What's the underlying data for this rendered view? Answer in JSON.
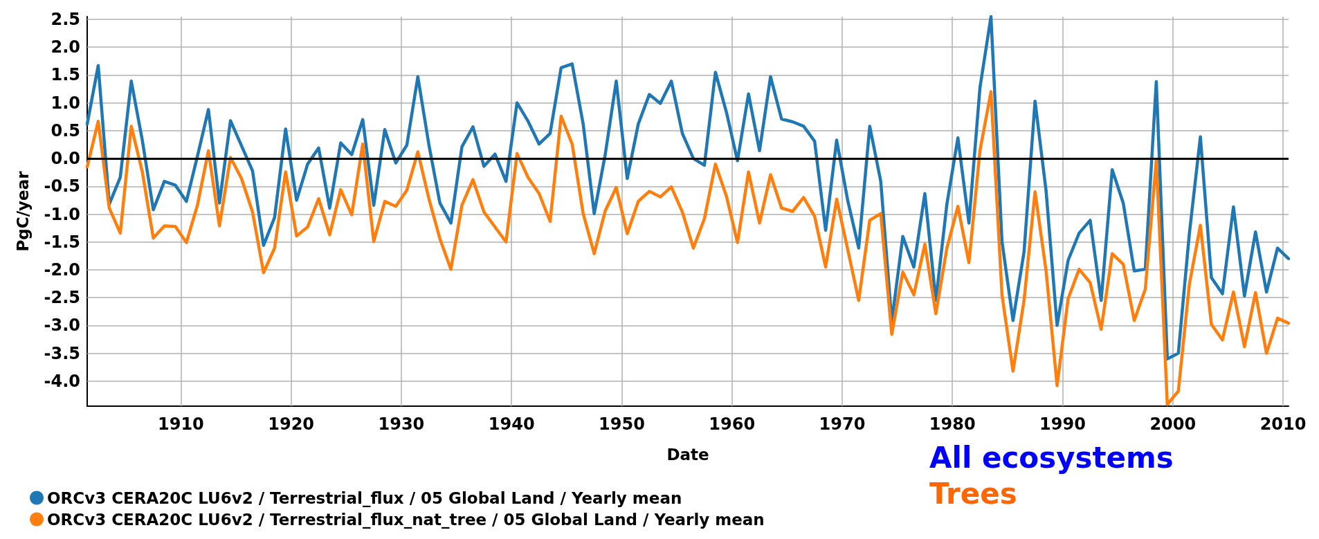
{
  "chart_data": {
    "type": "line",
    "xlabel": "Date",
    "ylabel": "PgC/year",
    "x": [
      1901.5,
      1902.5,
      1903.5,
      1904.5,
      1905.5,
      1906.5,
      1907.5,
      1908.5,
      1909.5,
      1910.5,
      1911.5,
      1912.5,
      1913.5,
      1914.5,
      1915.5,
      1916.5,
      1917.5,
      1918.5,
      1919.5,
      1920.5,
      1921.5,
      1922.5,
      1923.5,
      1924.5,
      1925.5,
      1926.5,
      1927.5,
      1928.5,
      1929.5,
      1930.5,
      1931.5,
      1932.5,
      1933.5,
      1934.5,
      1935.5,
      1936.5,
      1937.5,
      1938.5,
      1939.5,
      1940.5,
      1941.5,
      1942.5,
      1943.5,
      1944.5,
      1945.5,
      1946.5,
      1947.5,
      1948.5,
      1949.5,
      1950.5,
      1951.5,
      1952.5,
      1953.5,
      1954.5,
      1955.5,
      1956.5,
      1957.5,
      1958.5,
      1959.5,
      1960.5,
      1961.5,
      1962.5,
      1963.5,
      1964.5,
      1965.5,
      1966.5,
      1967.5,
      1968.5,
      1969.5,
      1970.5,
      1971.5,
      1972.5,
      1973.5,
      1974.5,
      1975.5,
      1976.5,
      1977.5,
      1978.5,
      1979.5,
      1980.5,
      1981.5,
      1982.5,
      1983.5,
      1984.5,
      1985.5,
      1986.5,
      1987.5,
      1988.5,
      1989.5,
      1990.5,
      1991.5,
      1992.5,
      1993.5,
      1994.5,
      1995.5,
      1996.5,
      1997.5,
      1998.5,
      1999.5,
      2000.5,
      2001.5,
      2002.5,
      2003.5,
      2004.5,
      2005.5,
      2006.5,
      2007.5,
      2008.5,
      2009.5,
      2010.5
    ],
    "series": [
      {
        "name": "ORCv3 CERA20C LU6v2 / Terrestrial_flux / 05 Global Land / Yearly mean",
        "color": "#1f77b4",
        "values": [
          0.62,
          1.67,
          -0.82,
          -0.34,
          1.39,
          0.33,
          -0.92,
          -0.41,
          -0.48,
          -0.77,
          0.04,
          0.88,
          -0.8,
          0.68,
          0.23,
          -0.22,
          -1.56,
          -1.06,
          0.53,
          -0.75,
          -0.1,
          0.19,
          -0.89,
          0.28,
          0.07,
          0.7,
          -0.84,
          0.52,
          -0.08,
          0.24,
          1.47,
          0.25,
          -0.8,
          -1.16,
          0.21,
          0.57,
          -0.14,
          0.08,
          -0.41,
          1.0,
          0.67,
          0.26,
          0.45,
          1.63,
          1.7,
          0.62,
          -0.99,
          0.07,
          1.39,
          -0.36,
          0.62,
          1.15,
          0.99,
          1.39,
          0.45,
          0.0,
          -0.12,
          1.55,
          0.83,
          -0.04,
          1.16,
          0.14,
          1.47,
          0.71,
          0.66,
          0.58,
          0.31,
          -1.29,
          0.33,
          -0.75,
          -1.61,
          0.58,
          -0.41,
          -2.93,
          -1.4,
          -1.95,
          -0.63,
          -2.55,
          -0.82,
          0.37,
          -1.16,
          1.27,
          2.55,
          -1.49,
          -2.91,
          -1.68,
          1.03,
          -0.58,
          -3.0,
          -1.83,
          -1.34,
          -1.11,
          -2.55,
          -0.2,
          -0.8,
          -2.02,
          -1.99,
          1.38,
          -3.6,
          -3.5,
          -1.35,
          0.39,
          -2.14,
          -2.43,
          -0.87,
          -2.47,
          -1.32,
          -2.4,
          -1.61,
          -1.8
        ]
      },
      {
        "name": "ORCv3 CERA20C LU6v2 / Terrestrial_flux_nat_tree / 05 Global Land / Yearly mean",
        "color": "#ff7f0e",
        "values": [
          -0.15,
          0.67,
          -0.89,
          -1.34,
          0.58,
          -0.24,
          -1.43,
          -1.21,
          -1.22,
          -1.51,
          -0.84,
          0.14,
          -1.21,
          0.02,
          -0.36,
          -0.96,
          -2.05,
          -1.61,
          -0.24,
          -1.39,
          -1.23,
          -0.72,
          -1.37,
          -0.56,
          -1.01,
          0.26,
          -1.49,
          -0.77,
          -0.86,
          -0.57,
          0.12,
          -0.72,
          -1.44,
          -1.99,
          -0.84,
          -0.38,
          -0.96,
          -1.23,
          -1.5,
          0.09,
          -0.34,
          -0.63,
          -1.13,
          0.76,
          0.26,
          -0.99,
          -1.71,
          -0.94,
          -0.52,
          -1.35,
          -0.77,
          -0.59,
          -0.69,
          -0.51,
          -0.96,
          -1.61,
          -1.08,
          -0.1,
          -0.68,
          -1.51,
          -0.24,
          -1.16,
          -0.29,
          -0.89,
          -0.95,
          -0.7,
          -1.04,
          -1.95,
          -0.73,
          -1.63,
          -2.55,
          -1.11,
          -0.99,
          -3.16,
          -2.04,
          -2.45,
          -1.54,
          -2.79,
          -1.61,
          -0.86,
          -1.87,
          0.14,
          1.2,
          -2.45,
          -3.82,
          -2.55,
          -0.6,
          -2.02,
          -4.08,
          -2.52,
          -1.99,
          -2.23,
          -3.07,
          -1.71,
          -1.9,
          -2.91,
          -2.35,
          -0.03,
          -4.42,
          -4.18,
          -2.26,
          -1.2,
          -2.98,
          -3.26,
          -2.4,
          -3.38,
          -2.41,
          -3.5,
          -2.87,
          -2.96
        ]
      }
    ],
    "xlim": [
      1901.5,
      2010.5
    ],
    "xticks": [
      1910,
      1920,
      1930,
      1940,
      1950,
      1960,
      1970,
      1980,
      1990,
      2000,
      2010
    ],
    "ylim": [
      -4.45,
      2.55
    ],
    "yticks": [
      {
        "value": -4,
        "label": "-4.0"
      },
      {
        "value": -3.5,
        "label": "-3.5"
      },
      {
        "value": -3,
        "label": "-3.0"
      },
      {
        "value": -2.5,
        "label": "-2.5"
      },
      {
        "value": -2,
        "label": "-2.0"
      },
      {
        "value": -1.5,
        "label": "-1.5"
      },
      {
        "value": -1,
        "label": "-1.0"
      },
      {
        "value": -0.5,
        "label": "-0.5"
      },
      {
        "value": 0,
        "label": "0.0"
      },
      {
        "value": 0.5,
        "label": "0.5"
      },
      {
        "value": 1,
        "label": "1.0"
      },
      {
        "value": 1.5,
        "label": "1.5"
      },
      {
        "value": 2,
        "label": "2.0"
      },
      {
        "value": 2.5,
        "label": "2.5"
      }
    ],
    "ref_lines": [
      {
        "axis": "y",
        "value": 0,
        "color": "#000000"
      }
    ],
    "annotations": [
      "All ecosystems",
      "Trees"
    ],
    "grid": true,
    "legend": "bottom left",
    "marker": "none",
    "line_style": "solid"
  }
}
